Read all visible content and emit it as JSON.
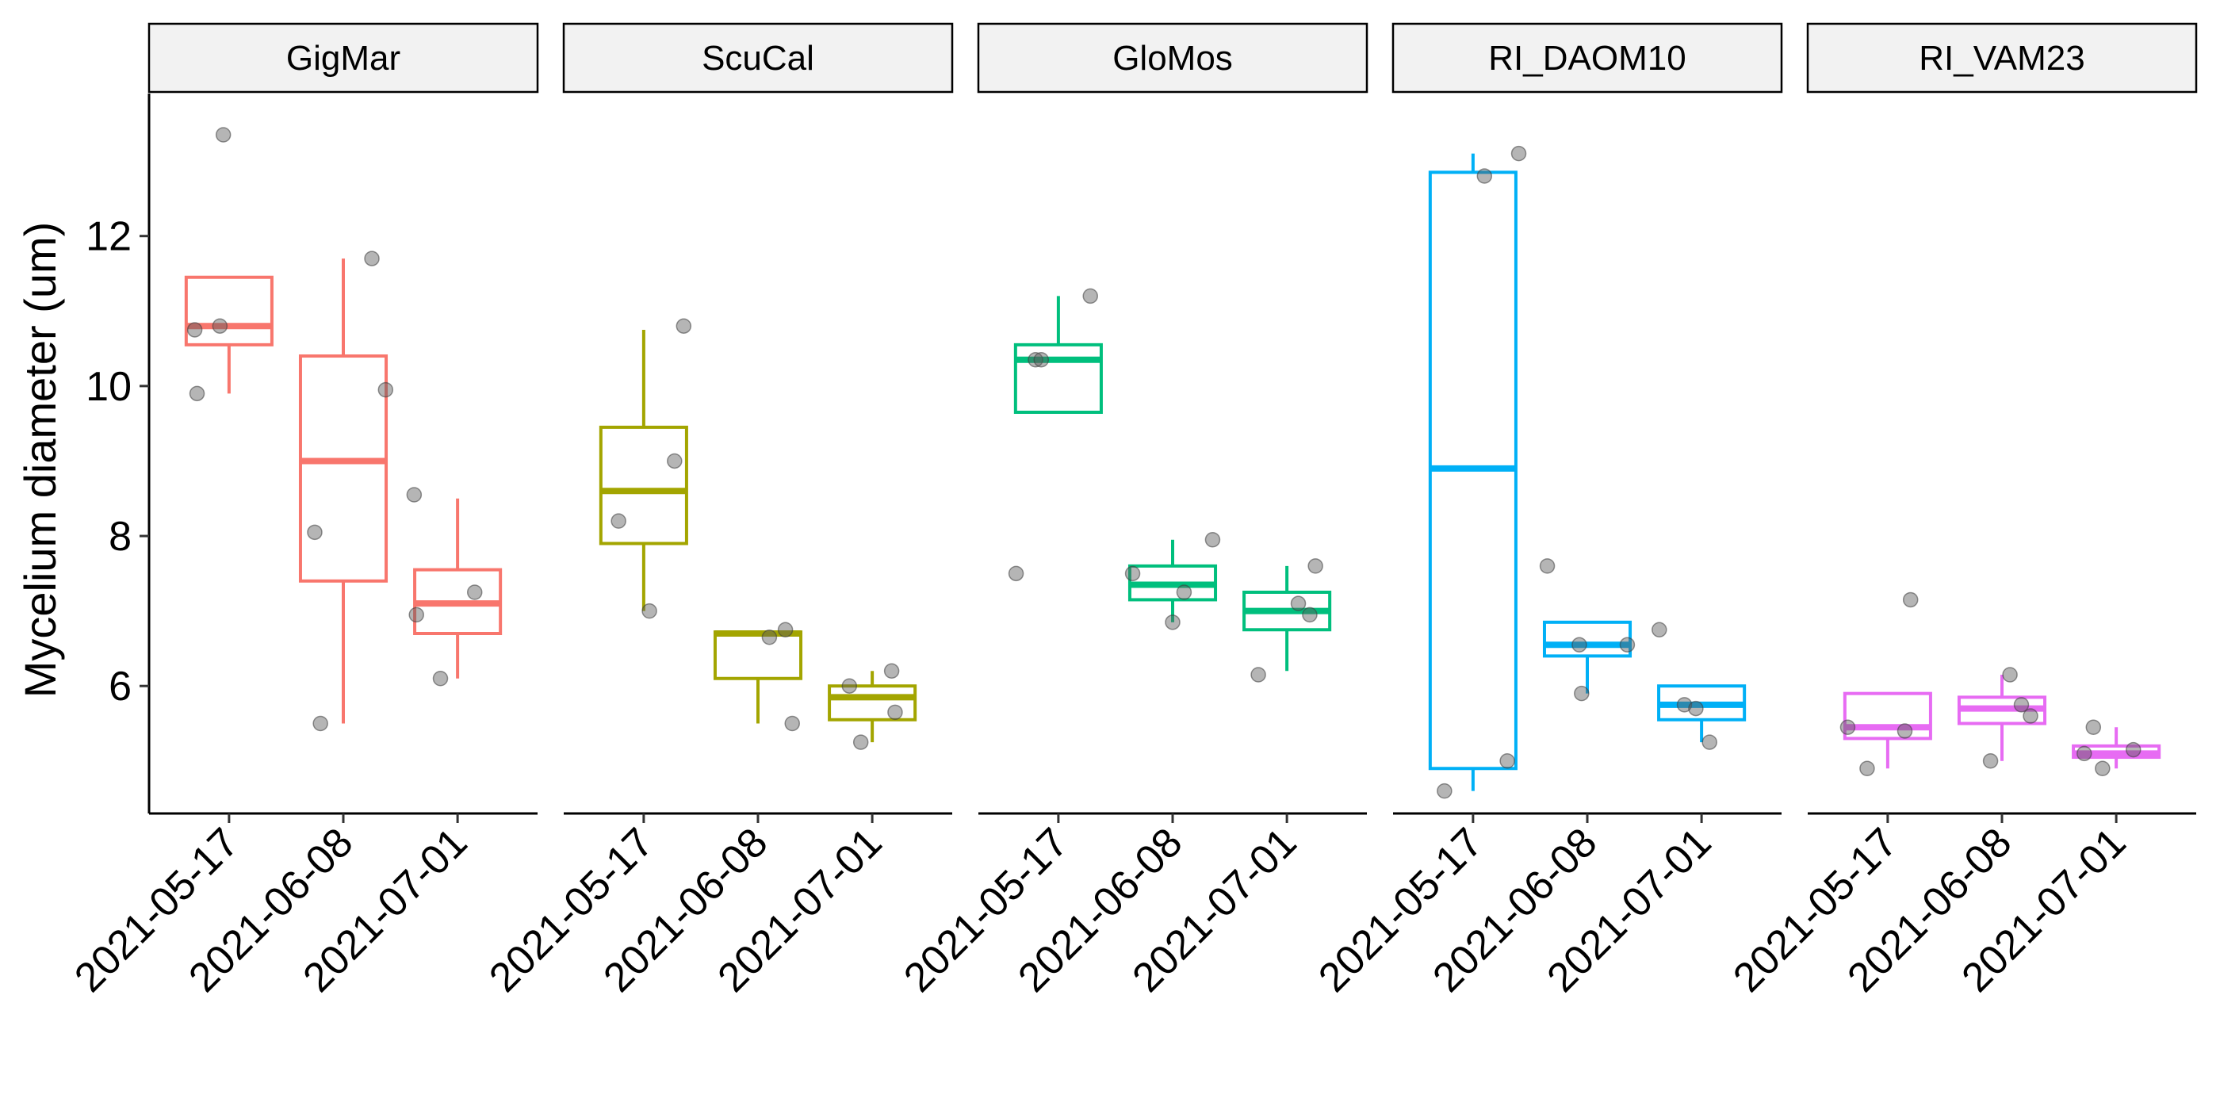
{
  "chart_data": {
    "type": "boxplot",
    "ylabel": "Mycelium diameter (um)",
    "y_ticks": [
      6,
      8,
      10,
      12
    ],
    "ylim": [
      4.3,
      13.9
    ],
    "categories": [
      "2021-05-17",
      "2021-06-08",
      "2021-07-01"
    ],
    "panels": [
      {
        "name": "GigMar",
        "color": "#F8766D",
        "boxes": [
          {
            "x": "2021-05-17",
            "lower": 9.9,
            "q1": 10.55,
            "median": 10.8,
            "q3": 11.45,
            "upper": 11.45
          },
          {
            "x": "2021-06-08",
            "lower": 5.5,
            "q1": 7.4,
            "median": 9.0,
            "q3": 10.4,
            "upper": 11.7
          },
          {
            "x": "2021-07-01",
            "lower": 6.1,
            "q1": 6.7,
            "median": 7.1,
            "q3": 7.55,
            "upper": 8.5
          }
        ],
        "points": [
          {
            "x": "2021-05-17",
            "j": -0.3,
            "y": 10.75
          },
          {
            "x": "2021-05-17",
            "j": -0.28,
            "y": 9.9
          },
          {
            "x": "2021-05-17",
            "j": -0.05,
            "y": 13.35
          },
          {
            "x": "2021-05-17",
            "j": -0.08,
            "y": 10.8
          },
          {
            "x": "2021-06-08",
            "j": -0.25,
            "y": 8.05
          },
          {
            "x": "2021-06-08",
            "j": -0.2,
            "y": 5.5
          },
          {
            "x": "2021-06-08",
            "j": 0.25,
            "y": 11.7
          },
          {
            "x": "2021-06-08",
            "j": 0.37,
            "y": 9.95
          },
          {
            "x": "2021-07-01",
            "j": -0.38,
            "y": 8.55
          },
          {
            "x": "2021-07-01",
            "j": -0.36,
            "y": 6.95
          },
          {
            "x": "2021-07-01",
            "j": -0.15,
            "y": 6.1
          },
          {
            "x": "2021-07-01",
            "j": 0.15,
            "y": 7.25
          }
        ]
      },
      {
        "name": "ScuCal",
        "color": "#A3A500",
        "boxes": [
          {
            "x": "2021-05-17",
            "lower": 7.0,
            "q1": 7.9,
            "median": 8.6,
            "q3": 9.45,
            "upper": 10.75
          },
          {
            "x": "2021-06-08",
            "lower": 5.5,
            "q1": 6.1,
            "median": 6.7,
            "q3": 6.72,
            "upper": 6.72
          },
          {
            "x": "2021-07-01",
            "lower": 5.25,
            "q1": 5.55,
            "median": 5.85,
            "q3": 6.0,
            "upper": 6.2
          }
        ],
        "points": [
          {
            "x": "2021-05-17",
            "j": -0.22,
            "y": 8.2
          },
          {
            "x": "2021-05-17",
            "j": 0.05,
            "y": 7.0
          },
          {
            "x": "2021-05-17",
            "j": 0.27,
            "y": 9.0
          },
          {
            "x": "2021-05-17",
            "j": 0.35,
            "y": 10.8
          },
          {
            "x": "2021-06-08",
            "j": 0.1,
            "y": 6.65
          },
          {
            "x": "2021-06-08",
            "j": 0.24,
            "y": 6.75
          },
          {
            "x": "2021-06-08",
            "j": 0.3,
            "y": 5.5
          },
          {
            "x": "2021-07-01",
            "j": -0.1,
            "y": 5.25
          },
          {
            "x": "2021-07-01",
            "j": -0.2,
            "y": 6.0
          },
          {
            "x": "2021-07-01",
            "j": 0.2,
            "y": 5.65
          },
          {
            "x": "2021-07-01",
            "j": 0.17,
            "y": 6.2
          }
        ]
      },
      {
        "name": "GloMos",
        "color": "#00BF7D",
        "boxes": [
          {
            "x": "2021-05-17",
            "lower": 9.65,
            "q1": 9.65,
            "median": 10.35,
            "q3": 10.55,
            "upper": 11.2
          },
          {
            "x": "2021-06-08",
            "lower": 6.85,
            "q1": 7.15,
            "median": 7.35,
            "q3": 7.6,
            "upper": 7.95
          },
          {
            "x": "2021-07-01",
            "lower": 6.2,
            "q1": 6.75,
            "median": 7.0,
            "q3": 7.25,
            "upper": 7.6
          }
        ],
        "points": [
          {
            "x": "2021-05-17",
            "j": -0.37,
            "y": 7.5
          },
          {
            "x": "2021-05-17",
            "j": -0.2,
            "y": 10.35
          },
          {
            "x": "2021-05-17",
            "j": -0.15,
            "y": 10.35
          },
          {
            "x": "2021-05-17",
            "j": 0.28,
            "y": 11.2
          },
          {
            "x": "2021-06-08",
            "j": -0.35,
            "y": 7.5
          },
          {
            "x": "2021-06-08",
            "j": 0.0,
            "y": 6.85
          },
          {
            "x": "2021-06-08",
            "j": 0.1,
            "y": 7.25
          },
          {
            "x": "2021-06-08",
            "j": 0.35,
            "y": 7.95
          },
          {
            "x": "2021-07-01",
            "j": -0.25,
            "y": 6.15
          },
          {
            "x": "2021-07-01",
            "j": 0.1,
            "y": 7.1
          },
          {
            "x": "2021-07-01",
            "j": 0.2,
            "y": 6.95
          },
          {
            "x": "2021-07-01",
            "j": 0.25,
            "y": 7.6
          }
        ]
      },
      {
        "name": "RI_DAOM10",
        "color": "#00B0F6",
        "boxes": [
          {
            "x": "2021-05-17",
            "lower": 4.6,
            "q1": 4.9,
            "median": 8.9,
            "q3": 12.85,
            "upper": 13.1
          },
          {
            "x": "2021-06-08",
            "lower": 5.9,
            "q1": 6.4,
            "median": 6.55,
            "q3": 6.85,
            "upper": 6.85
          },
          {
            "x": "2021-07-01",
            "lower": 5.25,
            "q1": 5.55,
            "median": 5.75,
            "q3": 6.0,
            "upper": 6.0
          }
        ],
        "points": [
          {
            "x": "2021-05-17",
            "j": -0.25,
            "y": 4.6
          },
          {
            "x": "2021-05-17",
            "j": 0.1,
            "y": 12.8
          },
          {
            "x": "2021-05-17",
            "j": 0.3,
            "y": 5.0
          },
          {
            "x": "2021-05-17",
            "j": 0.4,
            "y": 13.1
          },
          {
            "x": "2021-06-08",
            "j": -0.35,
            "y": 7.6
          },
          {
            "x": "2021-06-08",
            "j": -0.07,
            "y": 6.55
          },
          {
            "x": "2021-06-08",
            "j": -0.05,
            "y": 5.9
          },
          {
            "x": "2021-06-08",
            "j": 0.35,
            "y": 6.55
          },
          {
            "x": "2021-07-01",
            "j": -0.37,
            "y": 6.75
          },
          {
            "x": "2021-07-01",
            "j": -0.15,
            "y": 5.75
          },
          {
            "x": "2021-07-01",
            "j": -0.05,
            "y": 5.7
          },
          {
            "x": "2021-07-01",
            "j": 0.07,
            "y": 5.25
          }
        ]
      },
      {
        "name": "RI_VAM23",
        "color": "#E76BF3",
        "boxes": [
          {
            "x": "2021-05-17",
            "lower": 4.9,
            "q1": 5.3,
            "median": 5.45,
            "q3": 5.9,
            "upper": 5.9
          },
          {
            "x": "2021-06-08",
            "lower": 5.0,
            "q1": 5.5,
            "median": 5.7,
            "q3": 5.85,
            "upper": 6.15
          },
          {
            "x": "2021-07-01",
            "lower": 4.9,
            "q1": 5.05,
            "median": 5.1,
            "q3": 5.2,
            "upper": 5.45
          }
        ],
        "points": [
          {
            "x": "2021-05-17",
            "j": -0.35,
            "y": 5.45
          },
          {
            "x": "2021-05-17",
            "j": -0.18,
            "y": 4.9
          },
          {
            "x": "2021-05-17",
            "j": 0.15,
            "y": 5.4
          },
          {
            "x": "2021-05-17",
            "j": 0.2,
            "y": 7.15
          },
          {
            "x": "2021-06-08",
            "j": -0.1,
            "y": 5.0
          },
          {
            "x": "2021-06-08",
            "j": 0.07,
            "y": 6.15
          },
          {
            "x": "2021-06-08",
            "j": 0.17,
            "y": 5.75
          },
          {
            "x": "2021-06-08",
            "j": 0.25,
            "y": 5.6
          },
          {
            "x": "2021-07-01",
            "j": -0.28,
            "y": 5.1
          },
          {
            "x": "2021-07-01",
            "j": -0.2,
            "y": 5.45
          },
          {
            "x": "2021-07-01",
            "j": -0.12,
            "y": 4.9
          },
          {
            "x": "2021-07-01",
            "j": 0.15,
            "y": 5.15
          }
        ]
      }
    ]
  }
}
